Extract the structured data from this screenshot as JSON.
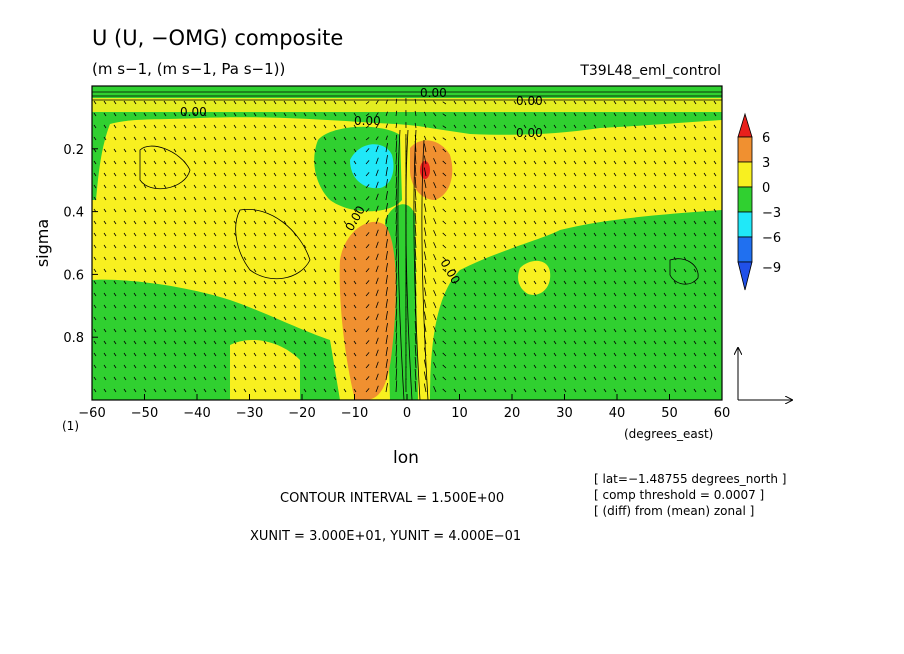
{
  "chart_data": {
    "type": "heatmap",
    "title": "U (U, −OMG) composite",
    "subtitle": "(m s−1, (m s−1, Pa s−1))",
    "experiment": "T39L48_eml_control",
    "xlabel": "lon",
    "xunits": "(degrees_east)",
    "ylabel": "sigma",
    "y_axis_note": "(1)",
    "xlim": [
      -60,
      60
    ],
    "ylim": [
      1.0,
      0.0
    ],
    "x_ticks": [
      -60,
      -50,
      -40,
      -30,
      -20,
      -10,
      0,
      10,
      20,
      30,
      40,
      50,
      60
    ],
    "x_tick_labels": [
      "−60",
      "−50",
      "−40",
      "−30",
      "−20",
      "−10",
      "0",
      "10",
      "20",
      "30",
      "40",
      "50",
      "60"
    ],
    "y_ticks": [
      0.2,
      0.4,
      0.6,
      0.8
    ],
    "y_tick_labels": [
      "0.2",
      "0.4",
      "0.6",
      "0.8"
    ],
    "contour_labels": [
      "0.00",
      "0.00",
      "0.00",
      "0.00",
      "0.00",
      "0.00",
      "0.00"
    ],
    "colorbar": {
      "levels": [
        "6",
        "3",
        "0",
        "−3",
        "−6",
        "−9"
      ],
      "colors": [
        "#e8201c",
        "#f09030",
        "#f8f020",
        "#30d030",
        "#20e8f8",
        "#2070f0",
        "#2050e8"
      ]
    },
    "regions": [
      {
        "name": "background",
        "value": "0..3",
        "color": "#f8f020"
      },
      {
        "name": "upper-band",
        "value": "-3..0",
        "color": "#30d030"
      },
      {
        "name": "upper-jet-core",
        "value": "-6..-3",
        "color": "#20e8f8"
      },
      {
        "name": "upper-positive-core",
        "value": "3..6",
        "color": "#f09030"
      },
      {
        "name": "upper-max",
        "value": ">6",
        "color": "#e8201c"
      },
      {
        "name": "lower-positive-column",
        "value": "3..6",
        "color": "#f09030"
      },
      {
        "name": "eastern-negative",
        "value": "-3..0",
        "color": "#30d030"
      },
      {
        "name": "western-negative-lower",
        "value": "-3..0",
        "color": "#30d030"
      }
    ],
    "grid": false,
    "contour_interval": "CONTOUR INTERVAL = 1.500E+00",
    "vector_units": "XUNIT = 3.000E+01, YUNIT = 4.000E−01",
    "notes": [
      "[ lat=−1.48755 degrees_north ]",
      "[ comp threshold = 0.0007 ]",
      "[ (diff) from (mean) zonal ]"
    ]
  },
  "colors": {
    "yellow": "#f8f020",
    "green": "#30d030",
    "cyan": "#20e8f8",
    "orange": "#f09030",
    "red": "#e8201c",
    "blue": "#2070f0"
  }
}
